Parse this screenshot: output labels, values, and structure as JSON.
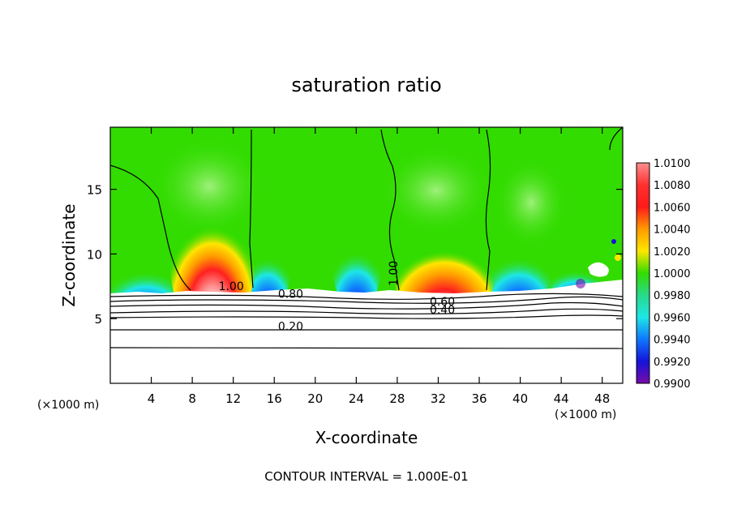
{
  "chart_data": {
    "type": "heatmap",
    "title": "saturation ratio",
    "xlabel": "X-coordinate",
    "ylabel": "Z-coordinate",
    "x_unit": "(×1000 m)",
    "y_unit": "(×1000 m)",
    "xlim": [
      0,
      50
    ],
    "ylim": [
      0,
      19.8
    ],
    "x_ticks": [
      4,
      8,
      12,
      16,
      20,
      24,
      28,
      32,
      36,
      40,
      44,
      48
    ],
    "y_ticks": [
      5,
      10,
      15
    ],
    "colorbar": {
      "values": [
        "1.0100",
        "1.0080",
        "1.0060",
        "1.0040",
        "1.0020",
        "1.0000",
        "0.9980",
        "0.9960",
        "0.9940",
        "0.9920",
        "0.9900"
      ],
      "colors": [
        "#ff8f8f",
        "#ff3030",
        "#ff1a1a",
        "#ff9a00",
        "#ffe600",
        "#32dc00",
        "#28d98a",
        "#1ee6e6",
        "#0f78ff",
        "#1414d8",
        "#7a0aa8"
      ]
    },
    "contour_labels": [
      {
        "text": "1.00",
        "x": 11.8,
        "z": 7.2
      },
      {
        "text": "0.80",
        "x": 17.6,
        "z": 6.6
      },
      {
        "text": "0.60",
        "x": 32.4,
        "z": 6.0
      },
      {
        "text": "0.40",
        "x": 32.4,
        "z": 5.4
      },
      {
        "text": "0.20",
        "x": 17.6,
        "z": 4.1
      },
      {
        "text": "1.00",
        "x": 28.0,
        "z": 8.5
      }
    ],
    "contour_interval_note": "CONTOUR INTERVAL = 1.000E-01",
    "grid": false,
    "legend": "colorbar-right"
  }
}
